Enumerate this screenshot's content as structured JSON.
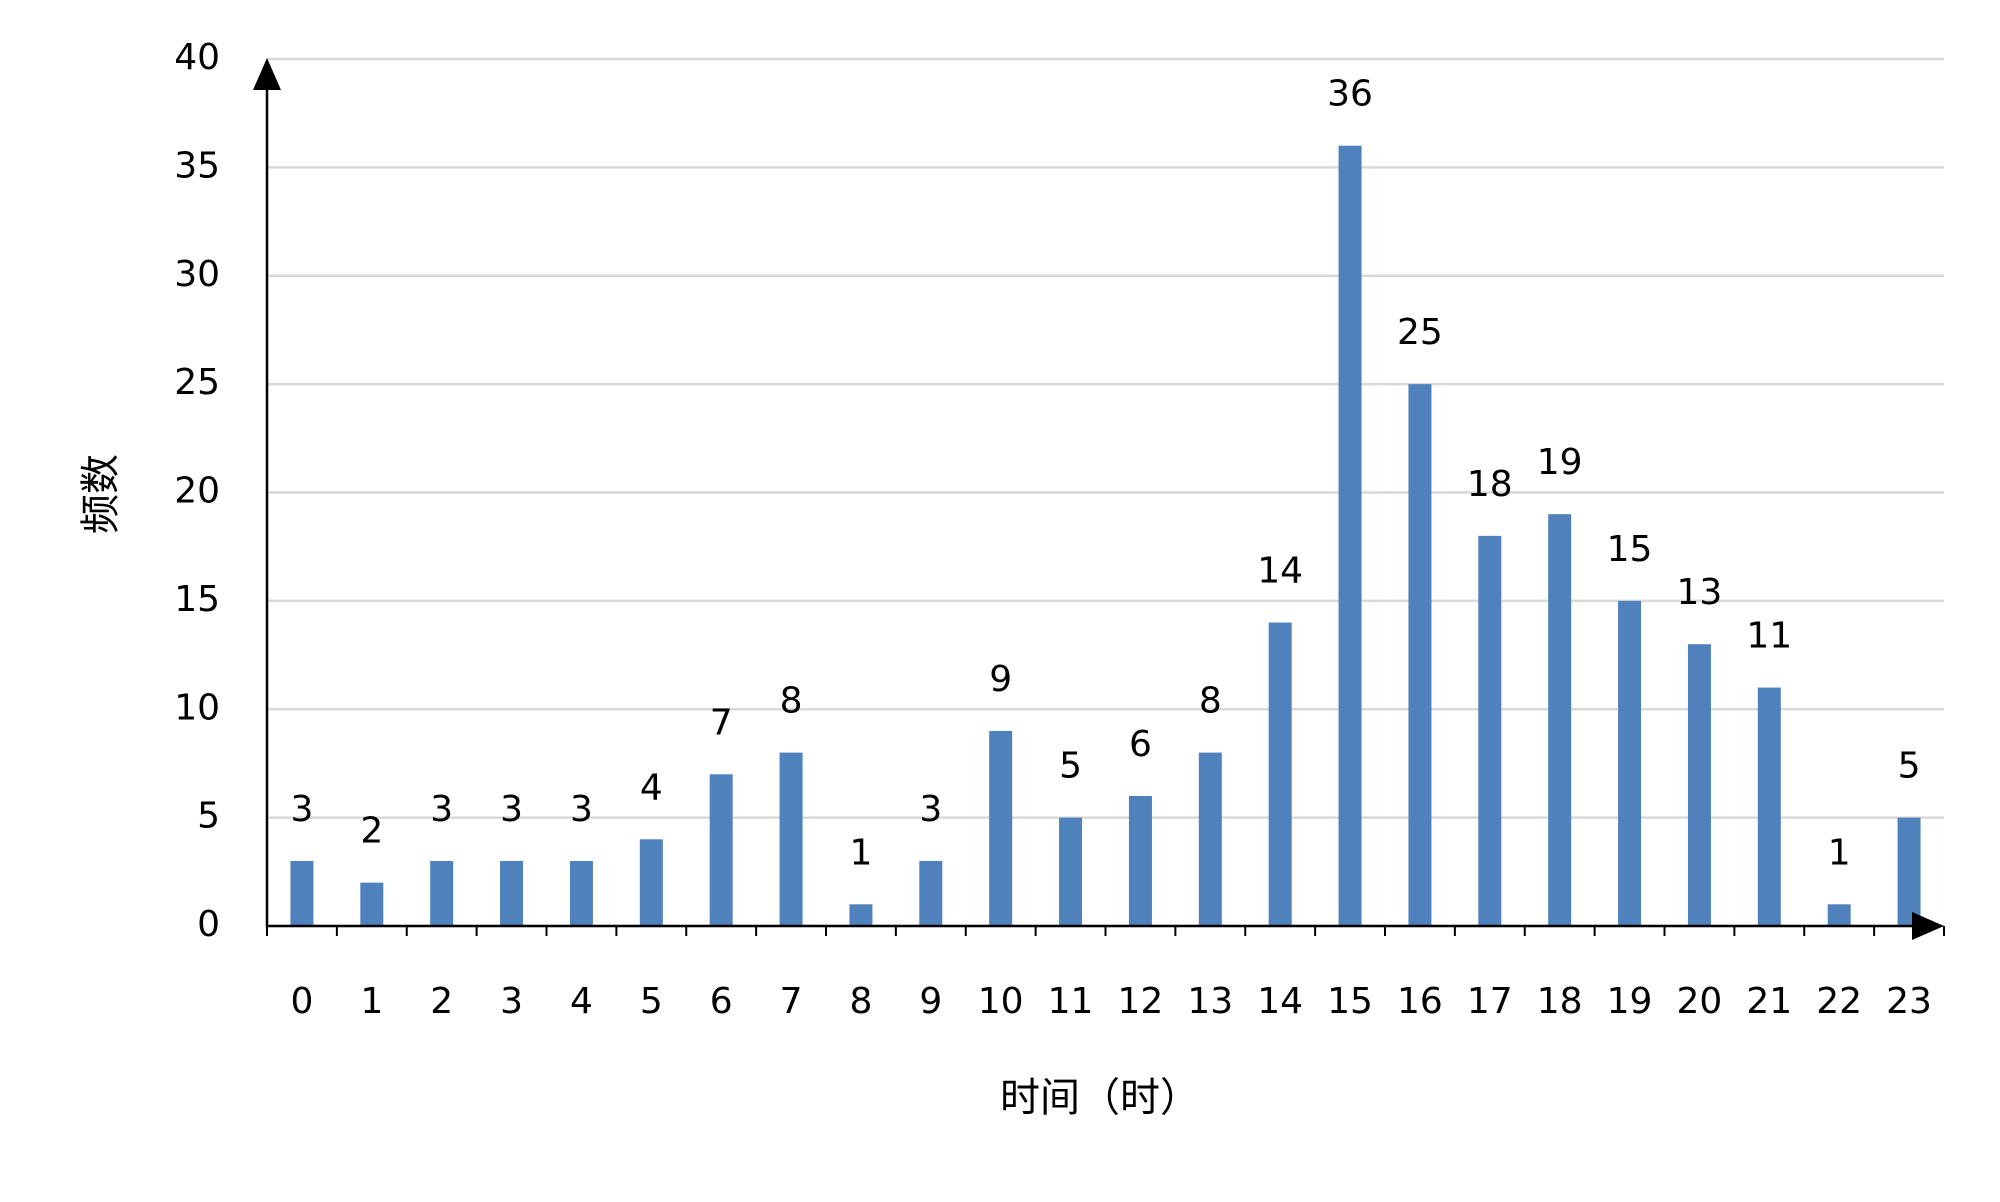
{
  "chart_data": {
    "type": "bar",
    "categories": [
      "0",
      "1",
      "2",
      "3",
      "4",
      "5",
      "6",
      "7",
      "8",
      "9",
      "10",
      "11",
      "12",
      "13",
      "14",
      "15",
      "16",
      "17",
      "18",
      "19",
      "20",
      "21",
      "22",
      "23"
    ],
    "values": [
      3,
      2,
      3,
      3,
      3,
      4,
      7,
      8,
      1,
      3,
      9,
      5,
      6,
      8,
      14,
      36,
      25,
      18,
      19,
      15,
      13,
      11,
      1,
      5
    ],
    "color": "#4f81bd",
    "ylim": [
      0,
      40
    ],
    "yticks": [
      0,
      5,
      10,
      15,
      20,
      25,
      30,
      35,
      40
    ],
    "grid": true,
    "x_label": "时间（时）",
    "y_label": "频数"
  }
}
